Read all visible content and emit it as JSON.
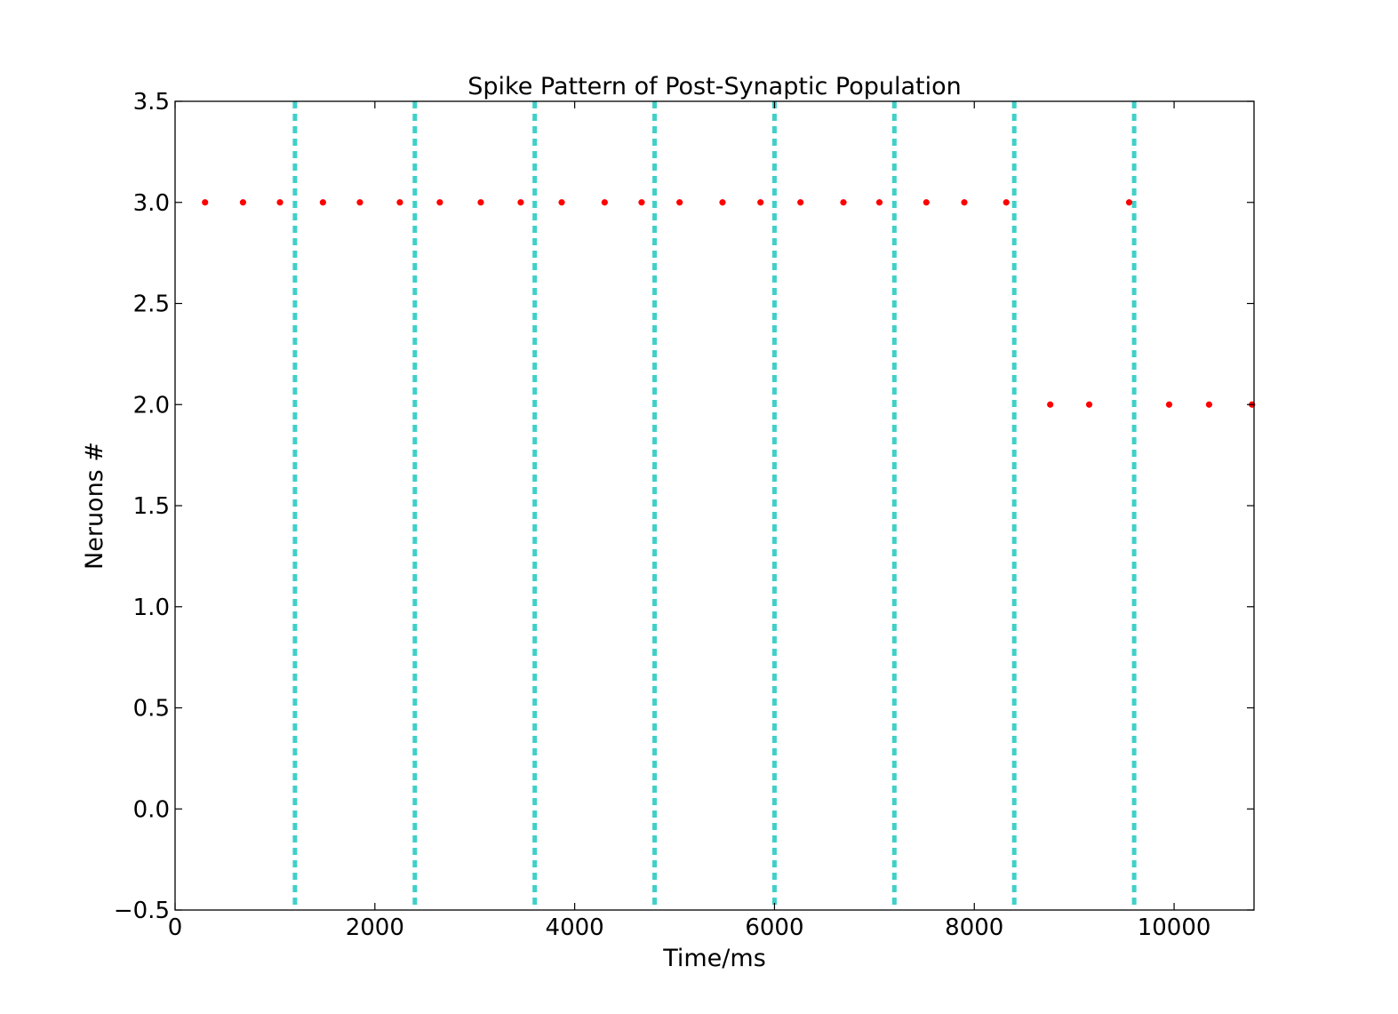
{
  "chart_data": {
    "type": "scatter",
    "title": "Spike Pattern of Post-Synaptic Population",
    "xlabel": "Time/ms",
    "ylabel": "Neruons #",
    "xlim": [
      0,
      10800
    ],
    "ylim": [
      -0.5,
      3.5
    ],
    "x_ticks": [
      "0",
      "2000",
      "4000",
      "6000",
      "8000",
      "10000"
    ],
    "x_tick_values": [
      0,
      2000,
      4000,
      6000,
      8000,
      10000
    ],
    "y_ticks": [
      "−0.5",
      "0.0",
      "0.5",
      "1.0",
      "1.5",
      "2.0",
      "2.5",
      "3.0",
      "3.5"
    ],
    "y_tick_values": [
      -0.5,
      0,
      0.5,
      1.0,
      1.5,
      2.0,
      2.5,
      3.0,
      3.5
    ],
    "grid": false,
    "vertical_lines": {
      "style": "dashed",
      "color": "#40d0c8",
      "x": [
        1200,
        2400,
        3600,
        4800,
        6000,
        7200,
        8400,
        9600
      ]
    },
    "series": [
      {
        "color": "#ff0000",
        "marker": "dot",
        "points": [
          [
            300,
            3
          ],
          [
            680,
            3
          ],
          [
            1050,
            3
          ],
          [
            1480,
            3
          ],
          [
            1850,
            3
          ],
          [
            2250,
            3
          ],
          [
            2650,
            3
          ],
          [
            3060,
            3
          ],
          [
            3460,
            3
          ],
          [
            3870,
            3
          ],
          [
            4300,
            3
          ],
          [
            4670,
            3
          ],
          [
            5050,
            3
          ],
          [
            5480,
            3
          ],
          [
            5860,
            3
          ],
          [
            6260,
            3
          ],
          [
            6690,
            3
          ],
          [
            7050,
            3
          ],
          [
            7520,
            3
          ],
          [
            7900,
            3
          ],
          [
            8320,
            3
          ],
          [
            9550,
            3
          ],
          [
            8760,
            2
          ],
          [
            9150,
            2
          ],
          [
            9950,
            2
          ],
          [
            10350,
            2
          ],
          [
            10780,
            2
          ]
        ]
      }
    ]
  }
}
